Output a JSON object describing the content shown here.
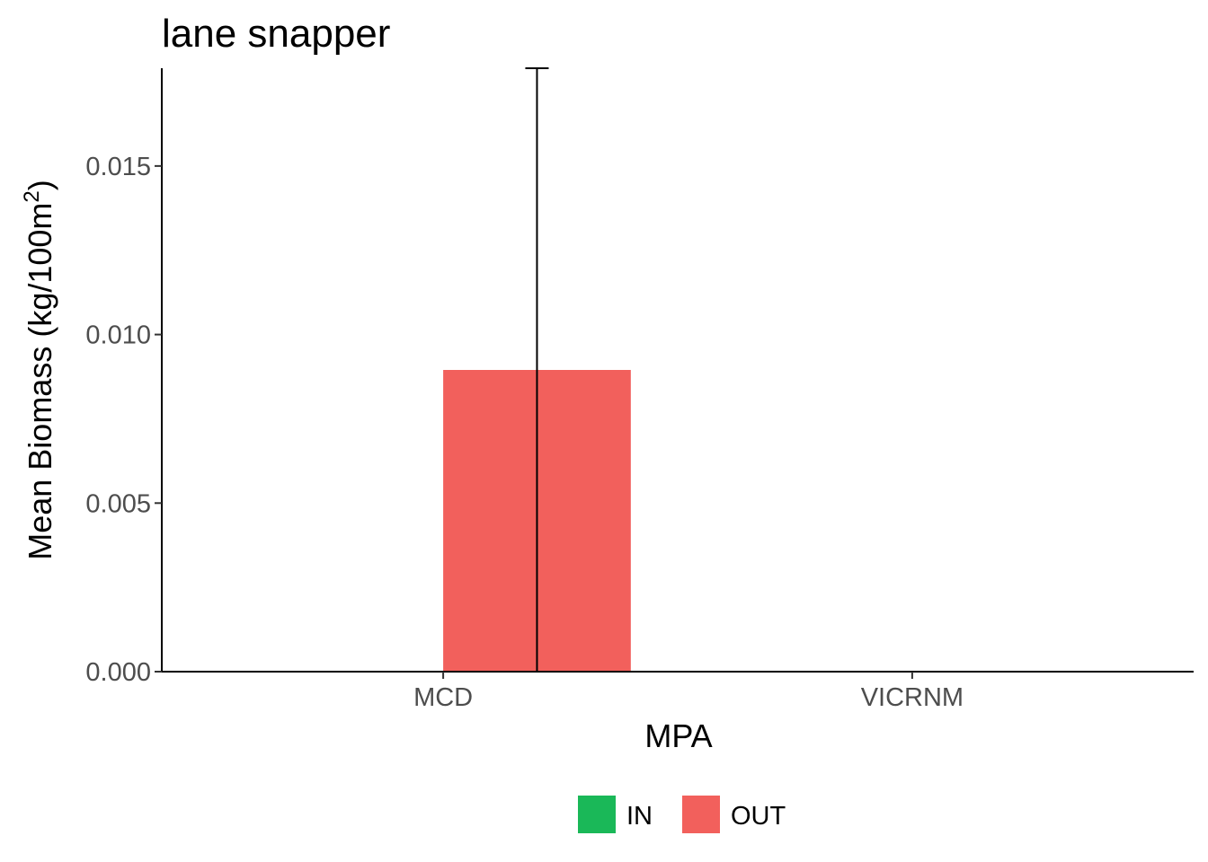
{
  "chart_data": {
    "type": "bar",
    "title": "lane snapper",
    "xlabel": "MPA",
    "ylabel": "Mean Biomass (kg/100m",
    "ylabel_superscript": "2",
    "ylabel_suffix": ")",
    "categories": [
      "MCD",
      "VICRNM"
    ],
    "series": [
      {
        "name": "IN",
        "color": "#1ab858",
        "values": [
          0,
          0
        ],
        "errors": [
          0,
          0
        ]
      },
      {
        "name": "OUT",
        "color": "#f2605c",
        "values": [
          0.00895,
          0
        ],
        "errors": [
          0.00895,
          0
        ]
      }
    ],
    "ylim": [
      0,
      0.0179
    ],
    "yticks": [
      0,
      0.005,
      0.01,
      0.015
    ],
    "ytick_labels": [
      "0.000",
      "0.005",
      "0.010",
      "0.015"
    ],
    "grid": false,
    "legend_position": "bottom"
  }
}
